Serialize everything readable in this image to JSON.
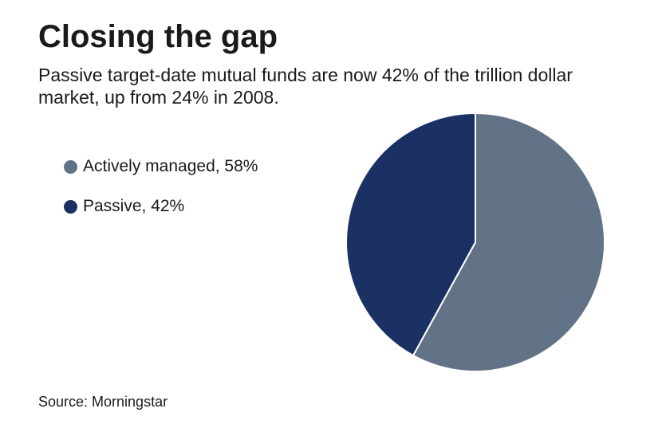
{
  "chart_data": {
    "type": "pie",
    "title": "Closing the gap",
    "subtitle": "Passive target-date mutual funds are now 42% of the trillion dollar market, up from 24% in 2008.",
    "slices": [
      {
        "label": "Actively managed, 58%",
        "name": "Actively managed",
        "value": 58,
        "color": "#637387"
      },
      {
        "label": "Passive, 42%",
        "name": "Passive",
        "value": 42,
        "color": "#1b3163"
      }
    ],
    "legend_position": "left",
    "source": "Source: Morningstar"
  }
}
